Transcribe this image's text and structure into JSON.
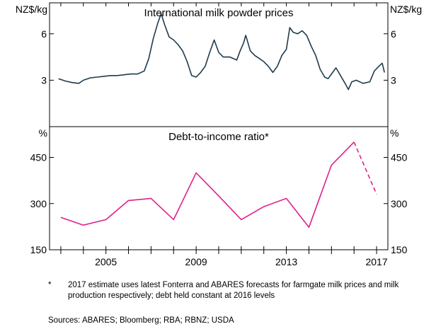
{
  "chart_data": [
    {
      "type": "line",
      "title": "International milk powder prices",
      "ylabel_left": "NZ$/kg",
      "ylabel_right": "NZ$/kg",
      "ylim": [
        0,
        8
      ],
      "yticks": [
        3,
        6
      ],
      "ytick_labels": [
        "3",
        "6"
      ],
      "grid": false,
      "series": [
        {
          "color": "#1f3b4d",
          "points": [
            [
              2002.9,
              3.1
            ],
            [
              2003.2,
              2.95
            ],
            [
              2003.5,
              2.85
            ],
            [
              2003.8,
              2.8
            ],
            [
              2004.0,
              3.0
            ],
            [
              2004.3,
              3.15
            ],
            [
              2004.6,
              3.2
            ],
            [
              2004.9,
              3.25
            ],
            [
              2005.2,
              3.3
            ],
            [
              2005.5,
              3.3
            ],
            [
              2005.8,
              3.35
            ],
            [
              2006.1,
              3.4
            ],
            [
              2006.4,
              3.4
            ],
            [
              2006.7,
              3.6
            ],
            [
              2006.9,
              4.4
            ],
            [
              2007.1,
              5.7
            ],
            [
              2007.3,
              6.7
            ],
            [
              2007.45,
              7.3
            ],
            [
              2007.6,
              6.6
            ],
            [
              2007.8,
              5.8
            ],
            [
              2008.0,
              5.6
            ],
            [
              2008.2,
              5.3
            ],
            [
              2008.4,
              4.9
            ],
            [
              2008.6,
              4.2
            ],
            [
              2008.8,
              3.3
            ],
            [
              2009.0,
              3.2
            ],
            [
              2009.2,
              3.5
            ],
            [
              2009.4,
              3.9
            ],
            [
              2009.6,
              4.8
            ],
            [
              2009.8,
              5.6
            ],
            [
              2010.0,
              4.8
            ],
            [
              2010.2,
              4.5
            ],
            [
              2010.5,
              4.5
            ],
            [
              2010.8,
              4.3
            ],
            [
              2010.95,
              4.9
            ],
            [
              2011.1,
              5.4
            ],
            [
              2011.2,
              5.9
            ],
            [
              2011.4,
              4.9
            ],
            [
              2011.6,
              4.6
            ],
            [
              2011.8,
              4.4
            ],
            [
              2012.0,
              4.2
            ],
            [
              2012.2,
              3.9
            ],
            [
              2012.4,
              3.5
            ],
            [
              2012.6,
              3.9
            ],
            [
              2012.8,
              4.6
            ],
            [
              2013.0,
              5.0
            ],
            [
              2013.15,
              6.4
            ],
            [
              2013.3,
              6.1
            ],
            [
              2013.5,
              6.0
            ],
            [
              2013.7,
              6.2
            ],
            [
              2013.9,
              5.9
            ],
            [
              2014.1,
              5.2
            ],
            [
              2014.3,
              4.6
            ],
            [
              2014.5,
              3.7
            ],
            [
              2014.7,
              3.2
            ],
            [
              2014.85,
              3.1
            ],
            [
              2015.0,
              3.4
            ],
            [
              2015.2,
              3.8
            ],
            [
              2015.4,
              3.3
            ],
            [
              2015.6,
              2.8
            ],
            [
              2015.75,
              2.4
            ],
            [
              2015.9,
              2.9
            ],
            [
              2016.1,
              3.0
            ],
            [
              2016.4,
              2.8
            ],
            [
              2016.7,
              2.9
            ],
            [
              2016.9,
              3.6
            ],
            [
              2017.1,
              3.9
            ],
            [
              2017.25,
              4.1
            ],
            [
              2017.35,
              3.5
            ]
          ]
        }
      ]
    },
    {
      "type": "line",
      "title": "Debt-to-income ratio*",
      "ylabel_left": "%",
      "ylabel_right": "%",
      "ylim": [
        150,
        550
      ],
      "yticks": [
        150,
        300,
        450
      ],
      "ytick_labels": [
        "150",
        "300",
        "450"
      ],
      "xlim": [
        2002.5,
        2017.5
      ],
      "xticks": [
        2005,
        2009,
        2013,
        2017
      ],
      "xtick_labels": [
        "2005",
        "2009",
        "2013",
        "2017"
      ],
      "grid": false,
      "series": [
        {
          "color": "#e0208a",
          "x": [
            2003,
            2004,
            2005,
            2006,
            2007,
            2008,
            2009,
            2010,
            2011,
            2012,
            2013,
            2014,
            2015,
            2016
          ],
          "values": [
            255,
            230,
            248,
            310,
            317,
            248,
            400,
            325,
            248,
            290,
            317,
            223,
            425,
            500
          ]
        },
        {
          "color": "#e0208a",
          "dashed": true,
          "x": [
            2016,
            2017
          ],
          "values": [
            500,
            330
          ]
        }
      ]
    }
  ],
  "footnote": {
    "mark": "*",
    "text": "2017 estimate uses latest Fonterra and ABARES forecasts for farmgate milk prices and milk production respectively; debt held constant at 2016 levels"
  },
  "sources": "Sources:   ABARES; Bloomberg; RBA; RBNZ; USDA"
}
